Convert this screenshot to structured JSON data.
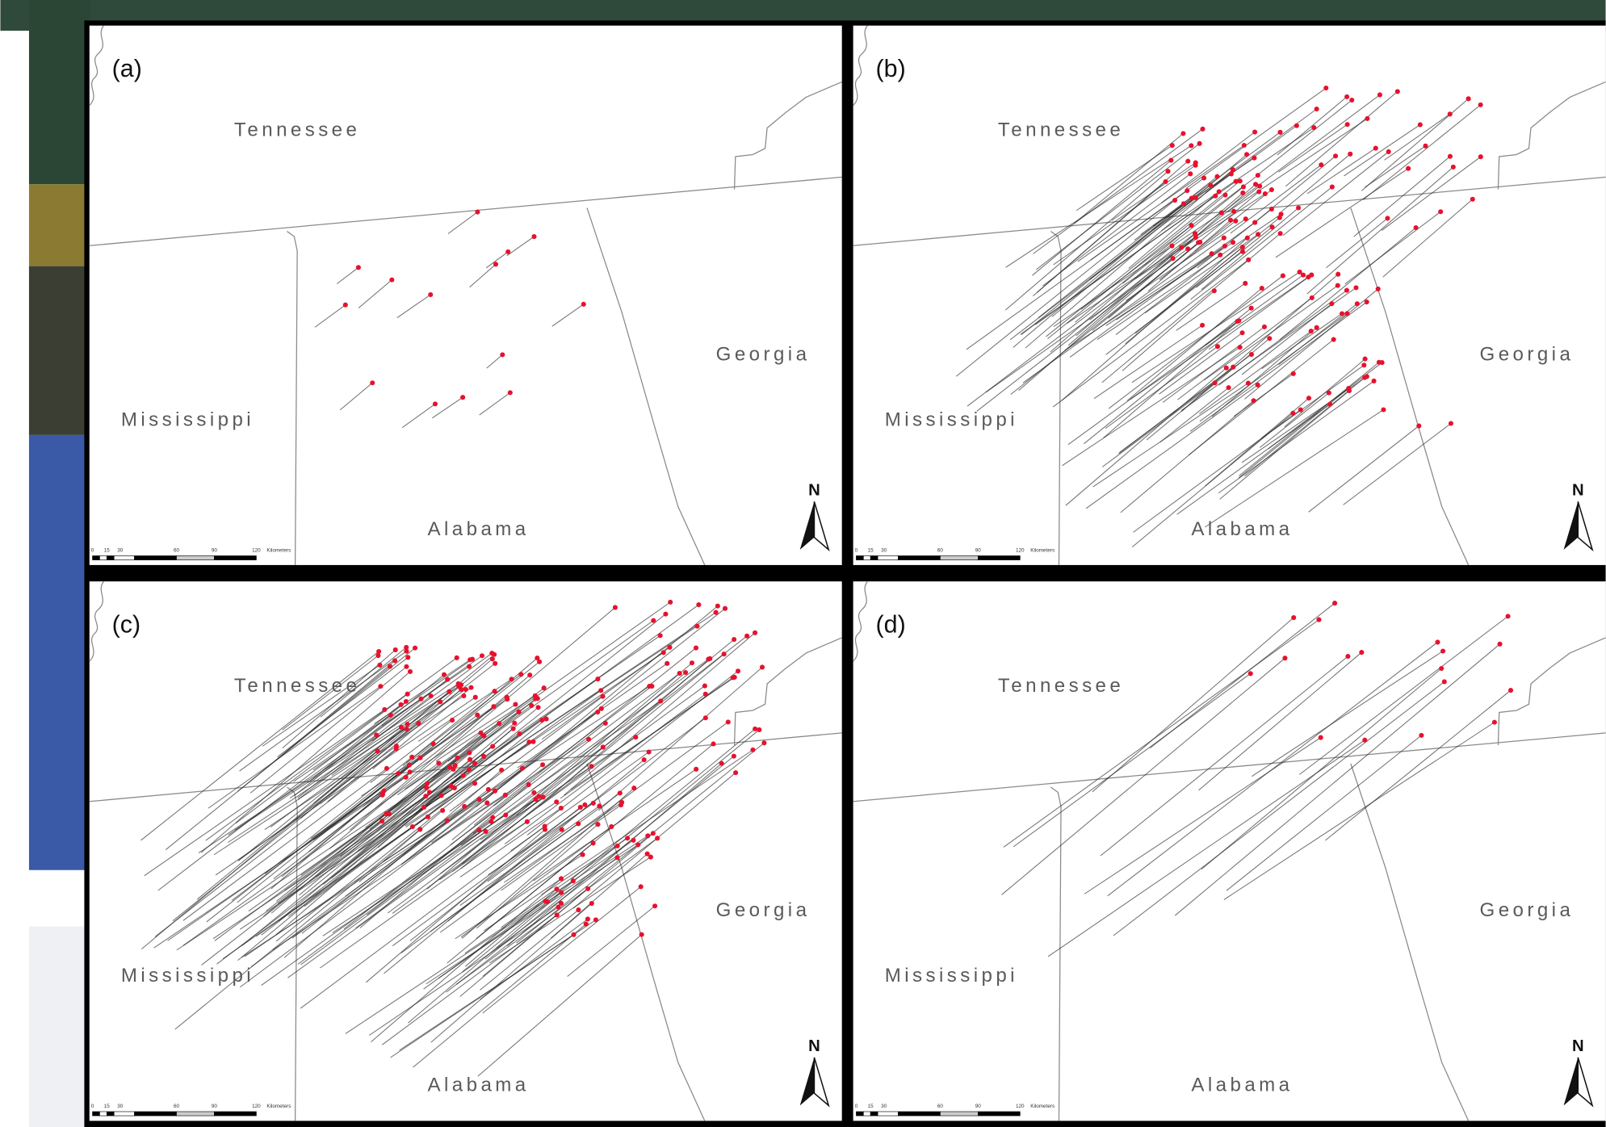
{
  "panels": [
    {
      "label": "(a)"
    },
    {
      "label": "(b)"
    },
    {
      "label": "(c)"
    },
    {
      "label": "(d)"
    }
  ],
  "map_labels": {
    "tennessee": "Tennessee",
    "georgia": "Georgia",
    "mississippi": "Mississippi",
    "alabama": "Alabama",
    "north": "N"
  },
  "scale_bar": [
    "0",
    "15",
    "30",
    "60",
    "90",
    "120",
    "Kilometers"
  ]
}
